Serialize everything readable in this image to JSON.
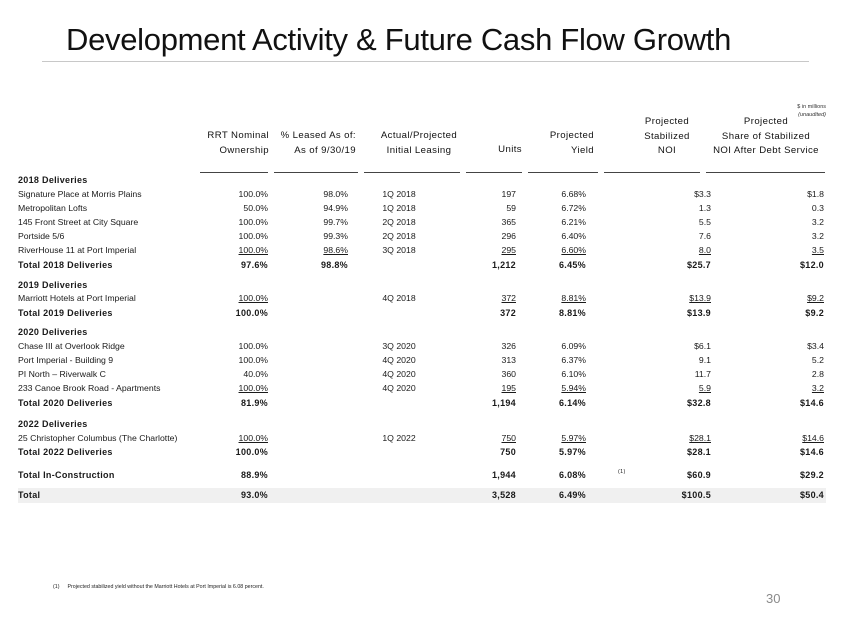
{
  "title": "Development Activity & Future Cash Flow Growth",
  "units_note": [
    "$ in millions",
    "(unaudited)"
  ],
  "headers": {
    "ownership": [
      "RRT Nominal",
      "Ownership"
    ],
    "leased": [
      "% Leased As of:",
      "As of 9/30/19"
    ],
    "initial": [
      "Actual/Projected",
      "Initial Leasing"
    ],
    "units": "Units",
    "yield": [
      "Projected",
      "Yield"
    ],
    "noi": [
      "Projected",
      "Stabilized",
      "NOI"
    ],
    "share": [
      "Projected",
      "Share of Stabilized",
      "NOI After Debt Service"
    ]
  },
  "sections": [
    {
      "title": "2018 Deliveries",
      "rows": [
        {
          "name": "Signature Place at Morris Plains",
          "own": "100.0%",
          "leased": "98.0%",
          "initial": "1Q 2018",
          "units": "197",
          "yield": "6.68%",
          "noi": "$3.3",
          "share": "$1.8"
        },
        {
          "name": "Metropolitan Lofts",
          "own": "50.0%",
          "leased": "94.9%",
          "initial": "1Q 2018",
          "units": "59",
          "yield": "6.72%",
          "noi": "1.3",
          "share": "0.3"
        },
        {
          "name": "145 Front Street at City Square",
          "own": "100.0%",
          "leased": "99.7%",
          "initial": "2Q 2018",
          "units": "365",
          "yield": "6.21%",
          "noi": "5.5",
          "share": "3.2"
        },
        {
          "name": "Portside 5/6",
          "own": "100.0%",
          "leased": "99.3%",
          "initial": "2Q 2018",
          "units": "296",
          "yield": "6.40%",
          "noi": "7.6",
          "share": "3.2"
        },
        {
          "name": "RiverHouse 11 at Port Imperial",
          "own": "100.0%",
          "leased": "98.6%",
          "initial": "3Q 2018",
          "units": "295",
          "yield": "6.60%",
          "noi": "8.0",
          "share": "3.5"
        }
      ],
      "total": {
        "name": "Total 2018 Deliveries",
        "own": "97.6%",
        "leased": "98.8%",
        "units": "1,212",
        "yield": "6.45%",
        "noi": "$25.7",
        "share": "$12.0"
      }
    },
    {
      "title": "2019 Deliveries",
      "rows": [
        {
          "name": "Marriott Hotels at Port Imperial",
          "own": "100.0%",
          "leased": "",
          "initial": "4Q 2018",
          "units": "372",
          "yield": "8.81%",
          "noi": "$13.9",
          "share": "$9.2"
        }
      ],
      "total": {
        "name": "Total 2019 Deliveries",
        "own": "100.0%",
        "leased": "",
        "units": "372",
        "yield": "8.81%",
        "noi": "$13.9",
        "share": "$9.2"
      }
    },
    {
      "title": "2020 Deliveries",
      "rows": [
        {
          "name": "Chase III at Overlook Ridge",
          "own": "100.0%",
          "leased": "",
          "initial": "3Q 2020",
          "units": "326",
          "yield": "6.09%",
          "noi": "$6.1",
          "share": "$3.4"
        },
        {
          "name": "Port Imperial - Building 9",
          "own": "100.0%",
          "leased": "",
          "initial": "4Q 2020",
          "units": "313",
          "yield": "6.37%",
          "noi": "9.1",
          "share": "5.2"
        },
        {
          "name": "PI North – Riverwalk C",
          "own": "40.0%",
          "leased": "",
          "initial": "4Q 2020",
          "units": "360",
          "yield": "6.10%",
          "noi": "11.7",
          "share": "2.8"
        },
        {
          "name": "233 Canoe Brook Road - Apartments",
          "own": "100.0%",
          "leased": "",
          "initial": "4Q 2020",
          "units": "195",
          "yield": "5.94%",
          "noi": "5.9",
          "share": "3.2"
        }
      ],
      "total": {
        "name": "Total 2020 Deliveries",
        "own": "81.9%",
        "leased": "",
        "units": "1,194",
        "yield": "6.14%",
        "noi": "$32.8",
        "share": "$14.6"
      }
    },
    {
      "title": "2022 Deliveries",
      "rows": [
        {
          "name": "25 Christopher Columbus (The Charlotte)",
          "own": "100.0%",
          "leased": "",
          "initial": "1Q 2022",
          "units": "750",
          "yield": "5.97%",
          "noi": "$28.1",
          "share": "$14.6"
        }
      ],
      "total": {
        "name": "Total 2022 Deliveries",
        "own": "100.0%",
        "leased": "",
        "units": "750",
        "yield": "5.97%",
        "noi": "$28.1",
        "share": "$14.6"
      }
    }
  ],
  "total_in_construction": {
    "name": "Total In-Construction",
    "own": "88.9%",
    "units": "1,944",
    "yield": "6.08%",
    "footnote_mark": "(1)",
    "noi": "$60.9",
    "share": "$29.2"
  },
  "grand_total": {
    "name": "Total",
    "own": "93.0%",
    "units": "3,528",
    "yield": "6.49%",
    "noi": "$100.5",
    "share": "$50.4"
  },
  "footnote": {
    "mark": "(1)",
    "text": "Projected stabilized yield without the Marriott Hotels at Port Imperial is 6.08 percent."
  },
  "page_number": "30"
}
